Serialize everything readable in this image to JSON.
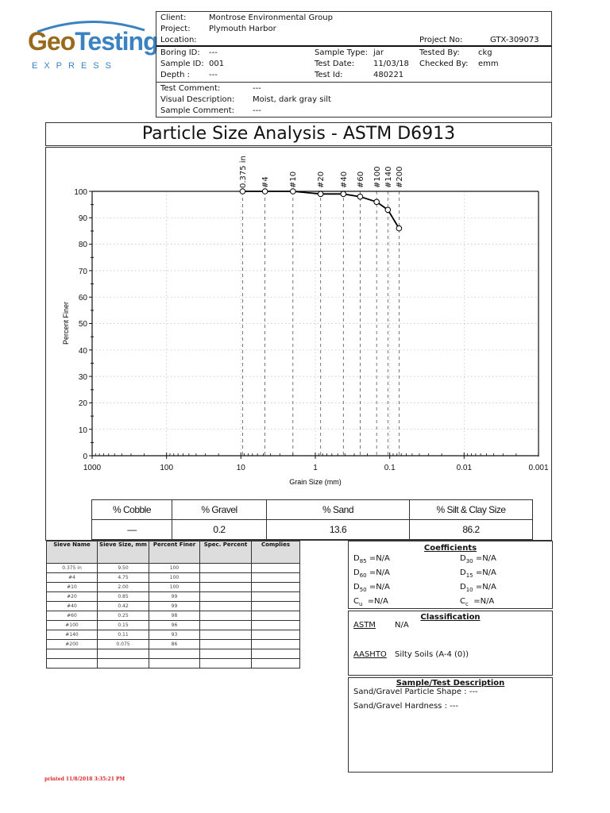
{
  "logo": {
    "brand_part1": "Geo",
    "brand_part2": "Testing",
    "sub": "EXPRESS"
  },
  "header": {
    "client_label": "Client:",
    "client": "Montrose Environmental Group",
    "project_label": "Project:",
    "project": "Plymouth Harbor",
    "location_label": "Location:",
    "location": "",
    "project_no_label": "Project No:",
    "project_no": "GTX-309073",
    "boring_id_label": "Boring ID:",
    "boring_id": "---",
    "sample_id_label": "Sample ID:",
    "sample_id": "001",
    "depth_label": "Depth :",
    "depth": "---",
    "sample_type_label": "Sample Type:",
    "sample_type": "jar",
    "test_date_label": "Test Date:",
    "test_date": "11/03/18",
    "test_id_label": "Test Id:",
    "test_id": "480221",
    "tested_by_label": "Tested By:",
    "tested_by": "ckg",
    "checked_by_label": "Checked By:",
    "checked_by": "emm",
    "test_comment_label": "Test Comment:",
    "test_comment": "---",
    "visual_desc_label": "Visual Description:",
    "visual_desc": "Moist, dark gray silt",
    "sample_comment_label": "Sample Comment:",
    "sample_comment": "---"
  },
  "title": "Particle Size Analysis - ASTM D6913",
  "chart_data": {
    "type": "line",
    "title": "Particle Size Analysis - ASTM D6913",
    "xlabel": "Grain Size (mm)",
    "ylabel": "Percent Finer",
    "x_scale": "log",
    "x_reversed": true,
    "xlim": [
      1000,
      0.001
    ],
    "ylim": [
      0,
      100
    ],
    "x_ticks": [
      "1000",
      "100",
      "10",
      "1",
      "0.1",
      "0.01",
      "0.001"
    ],
    "y_ticks": [
      "0",
      "10",
      "20",
      "30",
      "40",
      "50",
      "60",
      "70",
      "80",
      "90",
      "100"
    ],
    "grid": true,
    "sieve_labels": [
      "0.375 in",
      "#4",
      "#10",
      "#20",
      "#40",
      "#60",
      "#100",
      "#140",
      "#200"
    ],
    "x": [
      9.5,
      4.75,
      2.0,
      0.85,
      0.42,
      0.25,
      0.15,
      0.106,
      0.075
    ],
    "series": [
      {
        "name": "Percent Finer",
        "values": [
          100,
          100,
          100,
          99,
          99,
          98,
          96,
          93,
          86
        ]
      }
    ]
  },
  "composition": {
    "headers": [
      "% Cobble",
      "% Gravel",
      "% Sand",
      "% Silt & Clay Size"
    ],
    "values": [
      "—",
      "0.2",
      "13.6",
      "86.2"
    ]
  },
  "sieve_table": {
    "headers": [
      "Sieve Name",
      "Sieve Size, mm",
      "Percent Finer",
      "Spec. Percent",
      "Complies"
    ],
    "rows": [
      [
        "0.375 in",
        "9.50",
        "100",
        "",
        ""
      ],
      [
        "#4",
        "4.75",
        "100",
        "",
        ""
      ],
      [
        "#10",
        "2.00",
        "100",
        "",
        ""
      ],
      [
        "#20",
        "0.85",
        "99",
        "",
        ""
      ],
      [
        "#40",
        "0.42",
        "99",
        "",
        ""
      ],
      [
        "#60",
        "0.25",
        "98",
        "",
        ""
      ],
      [
        "#100",
        "0.15",
        "96",
        "",
        ""
      ],
      [
        "#140",
        "0.11",
        "93",
        "",
        ""
      ],
      [
        "#200",
        "0.075",
        "86",
        "",
        ""
      ],
      [
        "",
        "",
        "",
        "",
        ""
      ],
      [
        "",
        "",
        "",
        "",
        ""
      ]
    ]
  },
  "coefficients": {
    "title": "Coefficients",
    "d85": "=N/A",
    "d30": "=N/A",
    "d60": "=N/A",
    "d15": "=N/A",
    "d50": "=N/A",
    "d10": "=N/A",
    "cu": "=N/A",
    "cc": "=N/A"
  },
  "classification": {
    "title": "Classification",
    "astm_label": "ASTM",
    "astm": "N/A",
    "aashto_label": "AASHTO",
    "aashto": "Silty Soils (A-4 (0))"
  },
  "description": {
    "title": "Sample/Test Description",
    "shape": "Sand/Gravel Particle Shape : ---",
    "hardness": "Sand/Gravel Hardness : ---"
  },
  "footer": {
    "printed": "printed 11/8/2018 3:35:21 PM"
  }
}
